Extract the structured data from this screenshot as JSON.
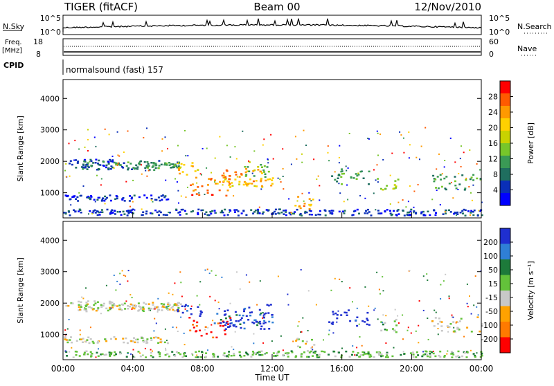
{
  "header": {
    "left": "TIGER (fitACF)",
    "center": "Beam 00",
    "right": "12/Nov/2010"
  },
  "top_panels": {
    "nsky_label": "N.Sky",
    "nsearch_label": "N.Search",
    "ticks_left": [
      "10^5",
      "10^0"
    ],
    "ticks_right": [
      "10^5",
      "10^0"
    ],
    "freq_label": "Freq.",
    "freq_unit": "[MHz]",
    "freq_ticks": [
      "18",
      "8"
    ],
    "nave_label": "Nave",
    "nave_ticks": [
      "60",
      "0"
    ],
    "cpid_label": "CPID",
    "cpid_text": "normalsound (fast) 157"
  },
  "chart_data": [
    {
      "type": "heatmap",
      "name": "power",
      "ylabel": "Slant Range [km]",
      "ylim": [
        200,
        4600
      ],
      "yticks": [
        "4000",
        "3000",
        "2000",
        "1000"
      ],
      "colorbar_label": "Power [dB]",
      "colorbar_ticks": [
        "28",
        "24",
        "20",
        "16",
        "12",
        "8",
        "4"
      ],
      "colorbar_colors": [
        "#ff0000",
        "#ff5a00",
        "#ff9900",
        "#ffd000",
        "#c9d200",
        "#77c62a",
        "#3a9a55",
        "#1f6e5f",
        "#0a2fb8",
        "#0000ff"
      ]
    },
    {
      "type": "heatmap",
      "name": "velocity",
      "ylabel": "Slant Range [km]",
      "ylim": [
        200,
        4600
      ],
      "yticks": [
        "4000",
        "3000",
        "2000",
        "1000"
      ],
      "xlabel": "Time UT",
      "xticks": [
        "00:00",
        "04:00",
        "08:00",
        "12:00",
        "16:00",
        "20:00",
        "00:00"
      ],
      "colorbar_label": "Velocity [m s⁻¹]",
      "colorbar_ticks": [
        "200",
        "100",
        "50",
        "15",
        "-15",
        "-50",
        "-100",
        "-200"
      ],
      "colorbar_colors": [
        "#1f2fd0",
        "#2f7fd6",
        "#1d7a3a",
        "#63c23a",
        "#c8c8c8",
        "#ffa200",
        "#ff7a00",
        "#ff0000"
      ]
    }
  ]
}
